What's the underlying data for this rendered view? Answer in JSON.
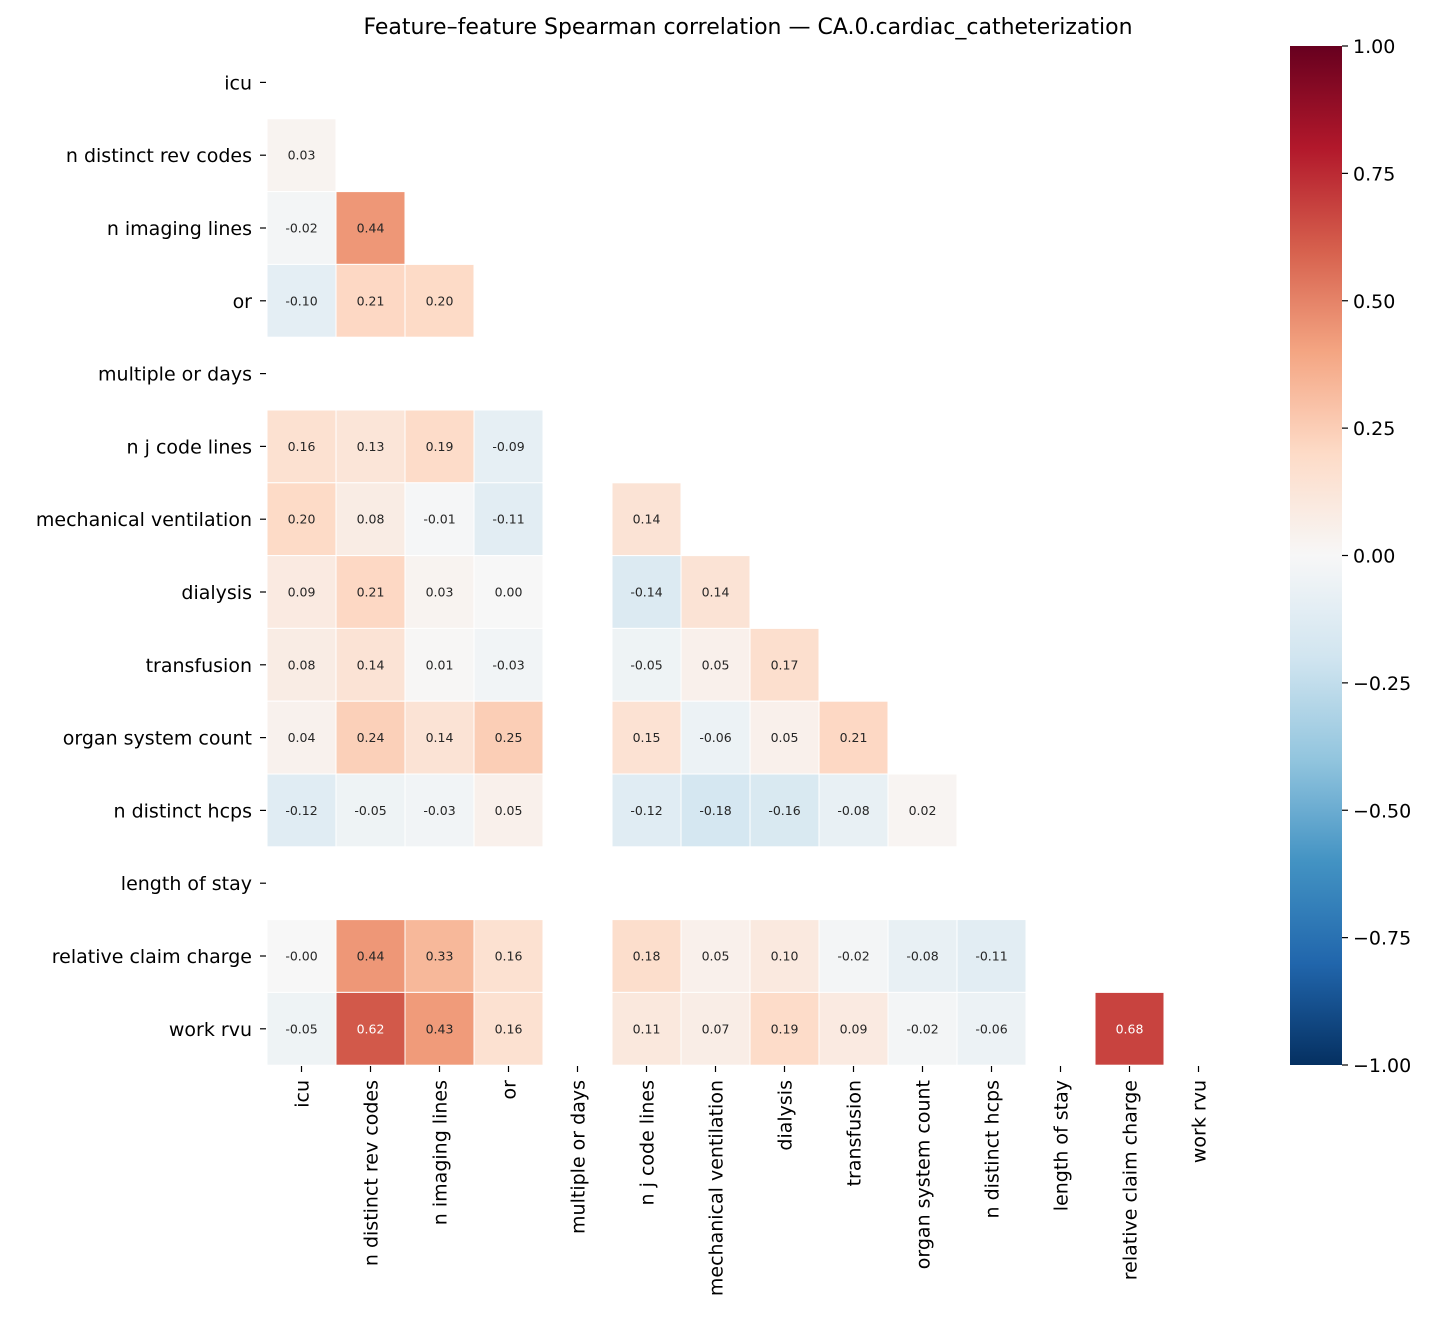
{
  "chart_data": {
    "type": "heatmap",
    "title": "Feature–feature Spearman correlation — CA.0.cardiac_catheterization",
    "labels": [
      "icu",
      "n distinct rev codes",
      "n imaging lines",
      "or",
      "multiple or days",
      "n j code lines",
      "mechanical ventilation",
      "dialysis",
      "transfusion",
      "organ system count",
      "n distinct hcps",
      "length of stay",
      "relative claim charge",
      "work rvu"
    ],
    "mask": "upper triangle incl. diagonal",
    "values": [
      [],
      [
        0.03
      ],
      [
        -0.02,
        0.44
      ],
      [
        -0.1,
        0.21,
        0.2
      ],
      [
        null,
        null,
        null,
        null
      ],
      [
        0.16,
        0.13,
        0.19,
        -0.09,
        null
      ],
      [
        0.2,
        0.08,
        -0.01,
        -0.11,
        null,
        0.14
      ],
      [
        0.09,
        0.21,
        0.03,
        0.0,
        null,
        -0.14,
        0.14
      ],
      [
        0.08,
        0.14,
        0.01,
        -0.03,
        null,
        -0.05,
        0.05,
        0.17
      ],
      [
        0.04,
        0.24,
        0.14,
        0.25,
        null,
        0.15,
        -0.06,
        0.05,
        0.21
      ],
      [
        -0.12,
        -0.05,
        -0.03,
        0.05,
        null,
        -0.12,
        -0.18,
        -0.16,
        -0.08,
        0.02
      ],
      [
        null,
        null,
        null,
        null,
        null,
        null,
        null,
        null,
        null,
        null,
        null
      ],
      [
        -0.0,
        0.44,
        0.33,
        0.16,
        null,
        0.18,
        0.05,
        0.1,
        -0.02,
        -0.08,
        -0.11,
        null
      ],
      [
        -0.05,
        0.62,
        0.43,
        0.16,
        null,
        0.11,
        0.07,
        0.19,
        0.09,
        -0.02,
        -0.06,
        null,
        0.68
      ]
    ],
    "colormap": "RdBu_r",
    "vmin": -1.0,
    "vmax": 1.0,
    "colorbar_ticks": [
      "1.00",
      "0.75",
      "0.50",
      "0.25",
      "0.00",
      "−0.25",
      "−0.50",
      "−0.75",
      "−1.00"
    ],
    "colorbar_tick_values": [
      1,
      0.75,
      0.5,
      0.25,
      0,
      -0.25,
      -0.5,
      -0.75,
      -1
    ]
  }
}
